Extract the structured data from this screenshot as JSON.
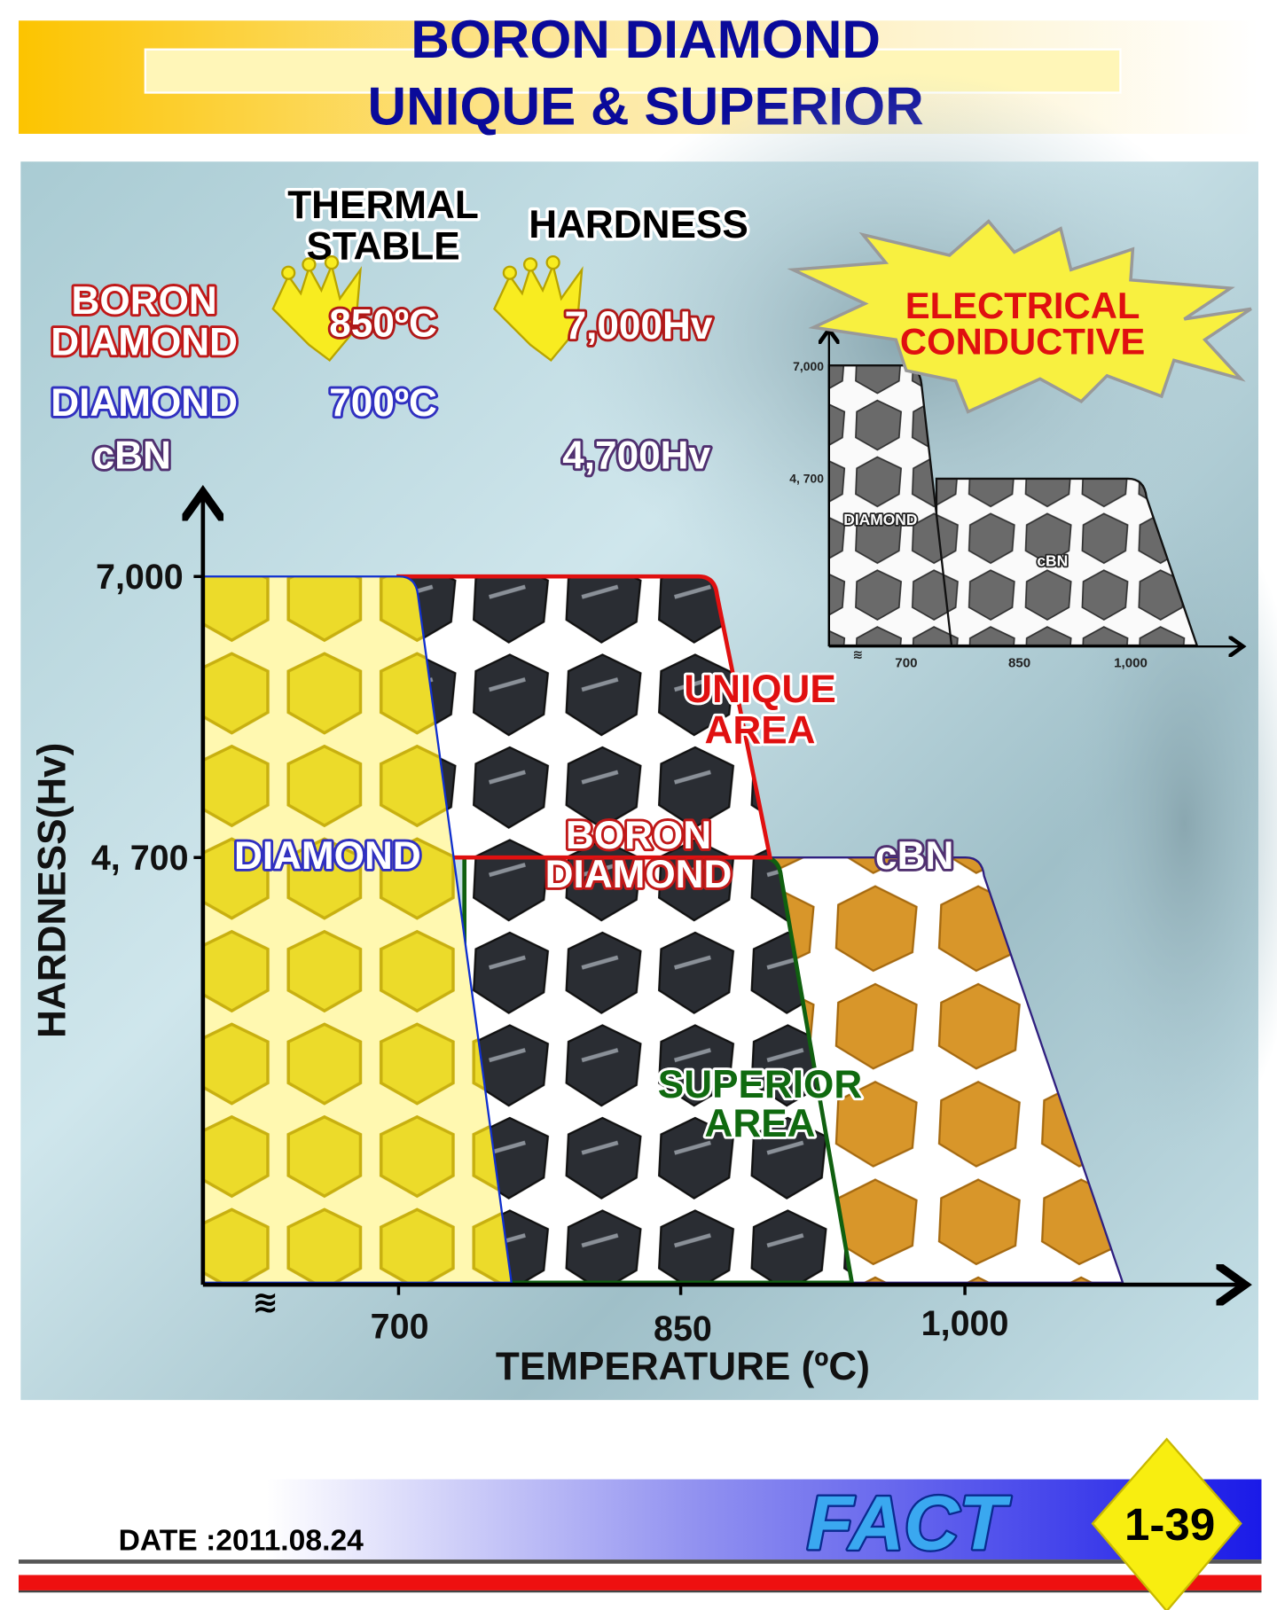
{
  "header": {
    "title_line1": "BORON DIAMOND",
    "title_line2": "UNIQUE & SUPERIOR",
    "title_color": "#0a0a9a"
  },
  "comparison": {
    "col_thermal_line1": "THERMAL",
    "col_thermal_line2": "STABLE",
    "col_hardness": "HARDNESS",
    "rows": [
      {
        "name_line1": "BORON",
        "name_line2": "DIAMOND",
        "thermal": "850ºC",
        "hardness": "7,000Hv",
        "crown": true
      },
      {
        "name_line1": "DIAMOND",
        "name_line2": "",
        "thermal": "700ºC",
        "hardness": "",
        "crown": false
      },
      {
        "name_line1": "cBN",
        "name_line2": "",
        "thermal": "",
        "hardness": "4,700Hv",
        "crown": false
      }
    ],
    "badge_line1": "ELECTRICAL",
    "badge_line2": "CONDUCTIVE",
    "crown_icon": "crown-icon",
    "starburst_icon": "starburst-icon"
  },
  "chart_data": [
    {
      "type": "area",
      "xlabel": "TEMPERATURE (ºC)",
      "ylabel": "HARDNESS(Hv)",
      "x_ticks": [
        "700",
        "850",
        "1,000"
      ],
      "x_tick_values": [
        700,
        850,
        1000
      ],
      "y_ticks": [
        "7,000",
        "4, 700"
      ],
      "y_tick_values": [
        7000,
        4700
      ],
      "axis_break": true,
      "regions": [
        {
          "label": "DIAMOND",
          "hardness": 7000,
          "stable_to": 707,
          "drop_end": 760,
          "color": "#f2e23a",
          "outline": "#1030d0"
        },
        {
          "label": "UNIQUE AREA",
          "hardness": 7000,
          "stable_to": 866,
          "drop_end": 901,
          "bottom": 4700,
          "color": "#2a2a2a",
          "outline": "#e01010"
        },
        {
          "label": "SUPERIOR AREA",
          "hardness": 4700,
          "stable_to": 900,
          "drop_end": 941,
          "color": "#2a2a2a",
          "outline": "#106010"
        },
        {
          "label": "cBN",
          "hardness": 4700,
          "stable_to": 1008,
          "drop_end": 1085,
          "color": "#d8962a",
          "outline": "#302080"
        }
      ],
      "annotations": {
        "unique_line1": "UNIQUE",
        "unique_line2": "AREA",
        "boron_line1": "BORON",
        "boron_line2": "DIAMOND",
        "diamond": "DIAMOND",
        "cbn": "cBN",
        "superior_line1": "SUPERIOR",
        "superior_line2": "AREA"
      }
    },
    {
      "type": "area",
      "x_ticks": [
        "700",
        "850",
        "1,000"
      ],
      "x_tick_values": [
        700,
        850,
        1000
      ],
      "y_ticks": [
        "7,000",
        "4, 700"
      ],
      "y_tick_values": [
        7000,
        4700
      ],
      "axis_break": true,
      "regions": [
        {
          "label": "DIAMOND",
          "hardness": 7000,
          "stable_to": 712,
          "drop_end": 760
        },
        {
          "label": "cBN",
          "hardness": 4700,
          "stable_to": 1010,
          "drop_end": 1085
        }
      ]
    }
  ],
  "footer": {
    "date": "DATE :2011.08.24",
    "brand": "FACT",
    "page": "1-39"
  }
}
